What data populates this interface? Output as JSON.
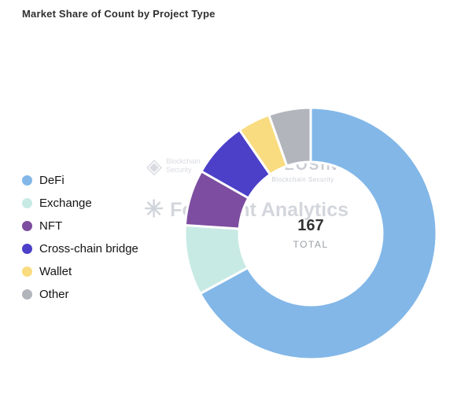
{
  "chart_data": {
    "type": "pie",
    "subtype": "donut",
    "title": "Market Share of Count by Project Type",
    "total": 167,
    "center": {
      "value": "167",
      "label": "TOTAL"
    },
    "legend_position": "left",
    "direction": "clockwise",
    "start_angle_deg": 0,
    "slices": [
      {
        "label": "DeFi",
        "value": 112,
        "color": "#82B7E8"
      },
      {
        "label": "Exchange",
        "value": 15,
        "color": "#C8EAE4"
      },
      {
        "label": "NFT",
        "value": 12,
        "color": "#7C4DA0"
      },
      {
        "label": "Cross-chain bridge",
        "value": 12,
        "color": "#4C3FC8"
      },
      {
        "label": "Wallet",
        "value": 7,
        "color": "#F9DC7F"
      },
      {
        "label": "Other",
        "value": 9,
        "color": "#B2B5BC"
      }
    ]
  },
  "watermarks": {
    "beosin_name": "BEOSIN",
    "beosin_tagline": "Blockchain Security",
    "footprint_name": "Footprint Analytics"
  }
}
